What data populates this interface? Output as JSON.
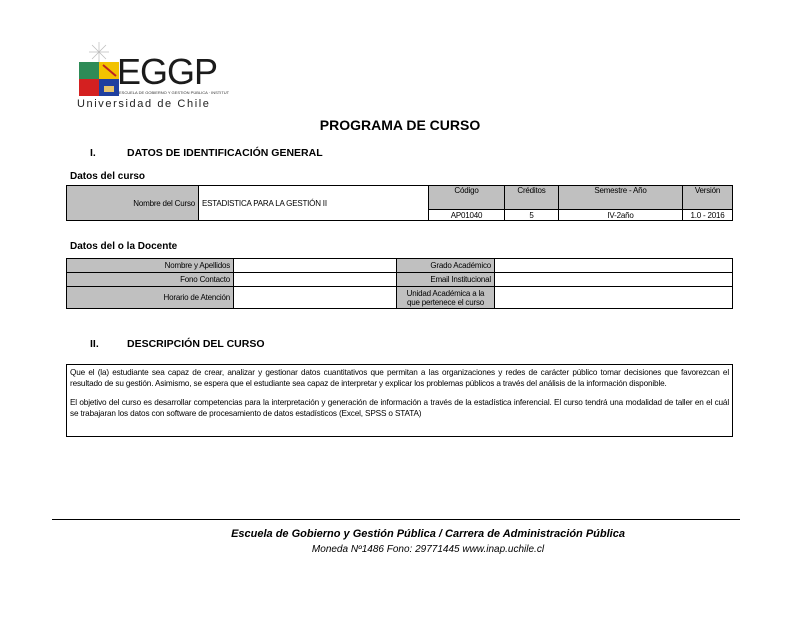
{
  "logo": {
    "acronym": "EGGP",
    "subtitle": "ESCUELA DE GOBIERNO Y GESTIÓN PÚBLICA · INSTITUTO DE ASUNTOS PÚBLICOS",
    "university": "Universidad de Chile"
  },
  "title": "PROGRAMA DE CURSO",
  "section1": {
    "number": "I.",
    "title": "DATOS DE IDENTIFICACIÓN GENERAL"
  },
  "course": {
    "heading": "Datos del curso",
    "name_label": "Nombre del Curso",
    "name_value": "ESTADISTICA PARA LA GESTIÓN II",
    "headers": [
      "Código",
      "Créditos",
      "Semestre - Año",
      "Versión"
    ],
    "values": [
      "AP01040",
      "5",
      "IV-2año",
      "1.0 - 2016"
    ]
  },
  "teacher": {
    "heading": "Datos del o la Docente",
    "labels_left": [
      "Nombre y Apellidos",
      "Fono Contacto",
      "Horario de Atención"
    ],
    "labels_right": [
      "Grado Académico",
      "Email Institucional",
      "Unidad Académica a la que pertenece el curso"
    ]
  },
  "section2": {
    "number": "II.",
    "title": "DESCRIPCIÓN DEL CURSO"
  },
  "description": [
    "Que el (la) estudiante sea capaz de crear, analizar y gestionar datos cuantitativos que permitan a las organizaciones y redes de carácter público tomar decisiones que favorezcan el resultado de su gestión. Asimismo, se espera que el estudiante sea capaz de interpretar y explicar los problemas públicos a través del análisis de la información disponible.",
    "El objetivo del curso es desarrollar competencias para la interpretación y generación de información a través de la estadística inferencial. El curso tendrá una modalidad de taller en el cuál se trabajaran los datos con software de procesamiento de datos estadísticos (Excel, SPSS o STATA)"
  ],
  "footer": {
    "line1": "Escuela de Gobierno y Gestión Pública / Carrera de Administración Pública",
    "line2": "Moneda Nº1486  Fono: 29771445  www.inap.uchile.cl"
  }
}
